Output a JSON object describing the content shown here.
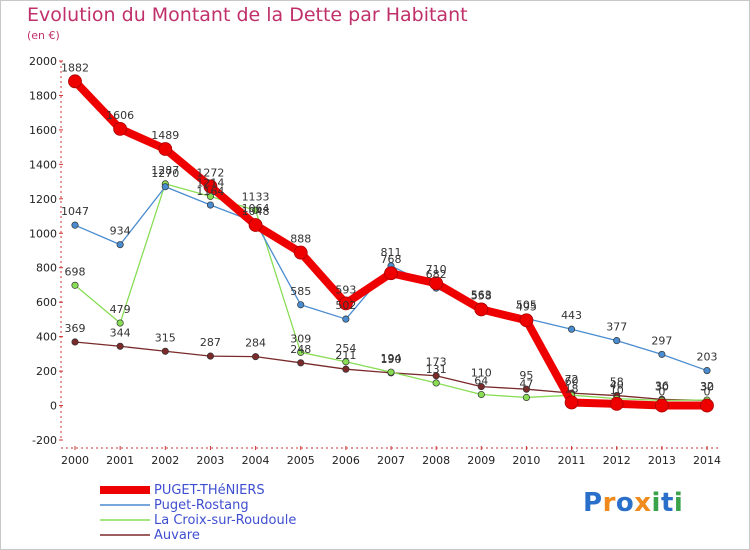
{
  "title": "Evolution du Montant de la Dette par Habitant",
  "unit": "(en €)",
  "logo": {
    "text": "Proxiti",
    "letters": [
      {
        "ch": "P",
        "color": "#2a6fc9"
      },
      {
        "ch": "r",
        "color": "#f08a1c"
      },
      {
        "ch": "o",
        "color": "#2a6fc9"
      },
      {
        "ch": "x",
        "color": "#f08a1c"
      },
      {
        "ch": "i",
        "color": "#3aa34a"
      },
      {
        "ch": "t",
        "color": "#2a6fc9"
      },
      {
        "ch": "i",
        "color": "#3aa34a"
      }
    ]
  },
  "chart_data": {
    "type": "line",
    "title": "Evolution du Montant de la Dette par Habitant",
    "ylabel": "(en €)",
    "xlabel": "",
    "x": [
      "2000",
      "2001",
      "2002",
      "2003",
      "2004",
      "2005",
      "2006",
      "2007",
      "2008",
      "2009",
      "2010",
      "2011",
      "2012",
      "2013",
      "2014"
    ],
    "ylim": [
      -200,
      2000
    ],
    "yticks": [
      -200,
      0,
      200,
      400,
      600,
      800,
      1000,
      1200,
      1400,
      1600,
      1800,
      2000
    ],
    "grid": false,
    "legend": "bottom-left",
    "series": [
      {
        "name": "PUGET-THéNIERS",
        "color": "#ee0000",
        "values": [
          1882,
          1606,
          1489,
          1272,
          1048,
          888,
          593,
          768,
          710,
          558,
          495,
          18,
          10,
          0,
          0
        ],
        "labels": [
          "1882",
          "1606",
          "1489",
          "1272",
          "1048",
          "888",
          "593",
          "768",
          "710",
          "558",
          "495",
          "18",
          "10",
          "0",
          "0"
        ]
      },
      {
        "name": "Puget-Rostang",
        "color": "#4a8cd0",
        "values": [
          1047,
          934,
          1270,
          1164,
          1064,
          585,
          502,
          811,
          682,
          563,
          505,
          443,
          377,
          297,
          203
        ],
        "labels": [
          "1047",
          "934",
          "1270",
          "1164",
          "1064",
          "585",
          "502",
          "811",
          "682",
          "563",
          "505",
          "443",
          "377",
          "297",
          "203"
        ]
      },
      {
        "name": "La Croix-sur-Roudoule",
        "color": "#88dd55",
        "values": [
          698,
          479,
          1287,
          1214,
          1133,
          309,
          254,
          194,
          131,
          64,
          47,
          60,
          40,
          30,
          32
        ],
        "labels": [
          "698",
          "479",
          "1287",
          "1214",
          "1133",
          "309",
          "254",
          "194",
          "131",
          "64",
          "47",
          "60",
          "40",
          "30",
          "32"
        ]
      },
      {
        "name": "Auvare",
        "color": "#7a2a2a",
        "values": [
          369,
          344,
          315,
          287,
          284,
          248,
          211,
          190,
          173,
          110,
          95,
          72,
          58,
          36,
          30
        ],
        "labels": [
          "369",
          "344",
          "315",
          "287",
          "284",
          "248",
          "211",
          "190",
          "173",
          "110",
          "95",
          "72",
          "58",
          "36",
          "30"
        ]
      }
    ]
  }
}
